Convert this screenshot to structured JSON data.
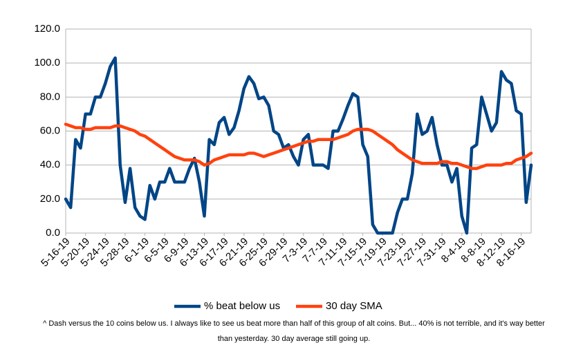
{
  "chart_data": {
    "type": "line",
    "categories": [
      "5-16-19",
      null,
      null,
      null,
      "5-20-19",
      null,
      null,
      null,
      "5-24-19",
      null,
      null,
      null,
      "5-28-19",
      null,
      null,
      null,
      "6-1-19",
      null,
      null,
      null,
      "6-5-19",
      null,
      null,
      null,
      "6-9-19",
      null,
      null,
      null,
      "6-13-19",
      null,
      null,
      null,
      "6-17-19",
      null,
      null,
      null,
      "6-21-19",
      null,
      null,
      null,
      "6-25-19",
      null,
      null,
      null,
      "6-29-19",
      null,
      null,
      null,
      "7-3-19",
      null,
      null,
      null,
      "7-7-19",
      null,
      null,
      null,
      "7-11-19",
      null,
      null,
      null,
      "7-15-19",
      null,
      null,
      null,
      "7-19-19",
      null,
      null,
      null,
      "7-23-19",
      null,
      null,
      null,
      "7-27-19",
      null,
      null,
      null,
      "7-31-19",
      null,
      null,
      null,
      "8-4-19",
      null,
      null,
      null,
      "8-8-19",
      null,
      null,
      null,
      "8-12-19",
      null,
      null,
      null,
      "8-16-19",
      null,
      null
    ],
    "series": [
      {
        "name": "% beat below us",
        "color": "#004586",
        "values": [
          20,
          15,
          55,
          50,
          70,
          70,
          80,
          80,
          88,
          98,
          103,
          40,
          18,
          38,
          15,
          10,
          8,
          28,
          20,
          30,
          30,
          38,
          30,
          30,
          30,
          38,
          44,
          30,
          10,
          55,
          52,
          65,
          68,
          58,
          62,
          72,
          85,
          92,
          88,
          79,
          80,
          75,
          60,
          58,
          50,
          52,
          45,
          40,
          55,
          58,
          40,
          40,
          40,
          38,
          60,
          60,
          67,
          75,
          82,
          80,
          52,
          45,
          5,
          0,
          0,
          0,
          0,
          12,
          20,
          20,
          35,
          70,
          58,
          60,
          68,
          52,
          40,
          40,
          30,
          38,
          10,
          0,
          50,
          52,
          80,
          70,
          60,
          65,
          95,
          90,
          88,
          72,
          70,
          18,
          40
        ]
      },
      {
        "name": "30 day SMA",
        "color": "#ff420e",
        "values": [
          64,
          63,
          62,
          62,
          61,
          61,
          62,
          62,
          62,
          62,
          63,
          63,
          62,
          61,
          60,
          58,
          57,
          55,
          53,
          51,
          49,
          47,
          45,
          44,
          43,
          43,
          43,
          42,
          40,
          41,
          43,
          44,
          45,
          46,
          46,
          46,
          46,
          47,
          47,
          46,
          45,
          46,
          47,
          48,
          49,
          50,
          51,
          52,
          53,
          54,
          54,
          55,
          55,
          55,
          55,
          56,
          57,
          58,
          60,
          61,
          61,
          61,
          60,
          58,
          56,
          54,
          52,
          49,
          47,
          45,
          43,
          42,
          41,
          41,
          41,
          41,
          42,
          42,
          41,
          41,
          40,
          39,
          38,
          38,
          39,
          40,
          40,
          40,
          40,
          41,
          41,
          43,
          44,
          45,
          47
        ]
      }
    ],
    "ylim": [
      0,
      120
    ],
    "yticks": [
      {
        "value": 0,
        "label": "0.0"
      },
      {
        "value": 20,
        "label": "20.0"
      },
      {
        "value": 40,
        "label": "40.0"
      },
      {
        "value": 60,
        "label": "60.0"
      },
      {
        "value": 80,
        "label": "80.0"
      },
      {
        "value": 100,
        "label": "100.0"
      },
      {
        "value": 120,
        "label": "120.0"
      }
    ],
    "grid": true,
    "legend": "bottom",
    "caption": [
      "^ Dash versus the 10 coins below us. I always like to see us beat more than half of this group of alt coins. But... 40% is not terrible, and it's way better",
      "than yesterday. 30 day average still going up."
    ]
  }
}
